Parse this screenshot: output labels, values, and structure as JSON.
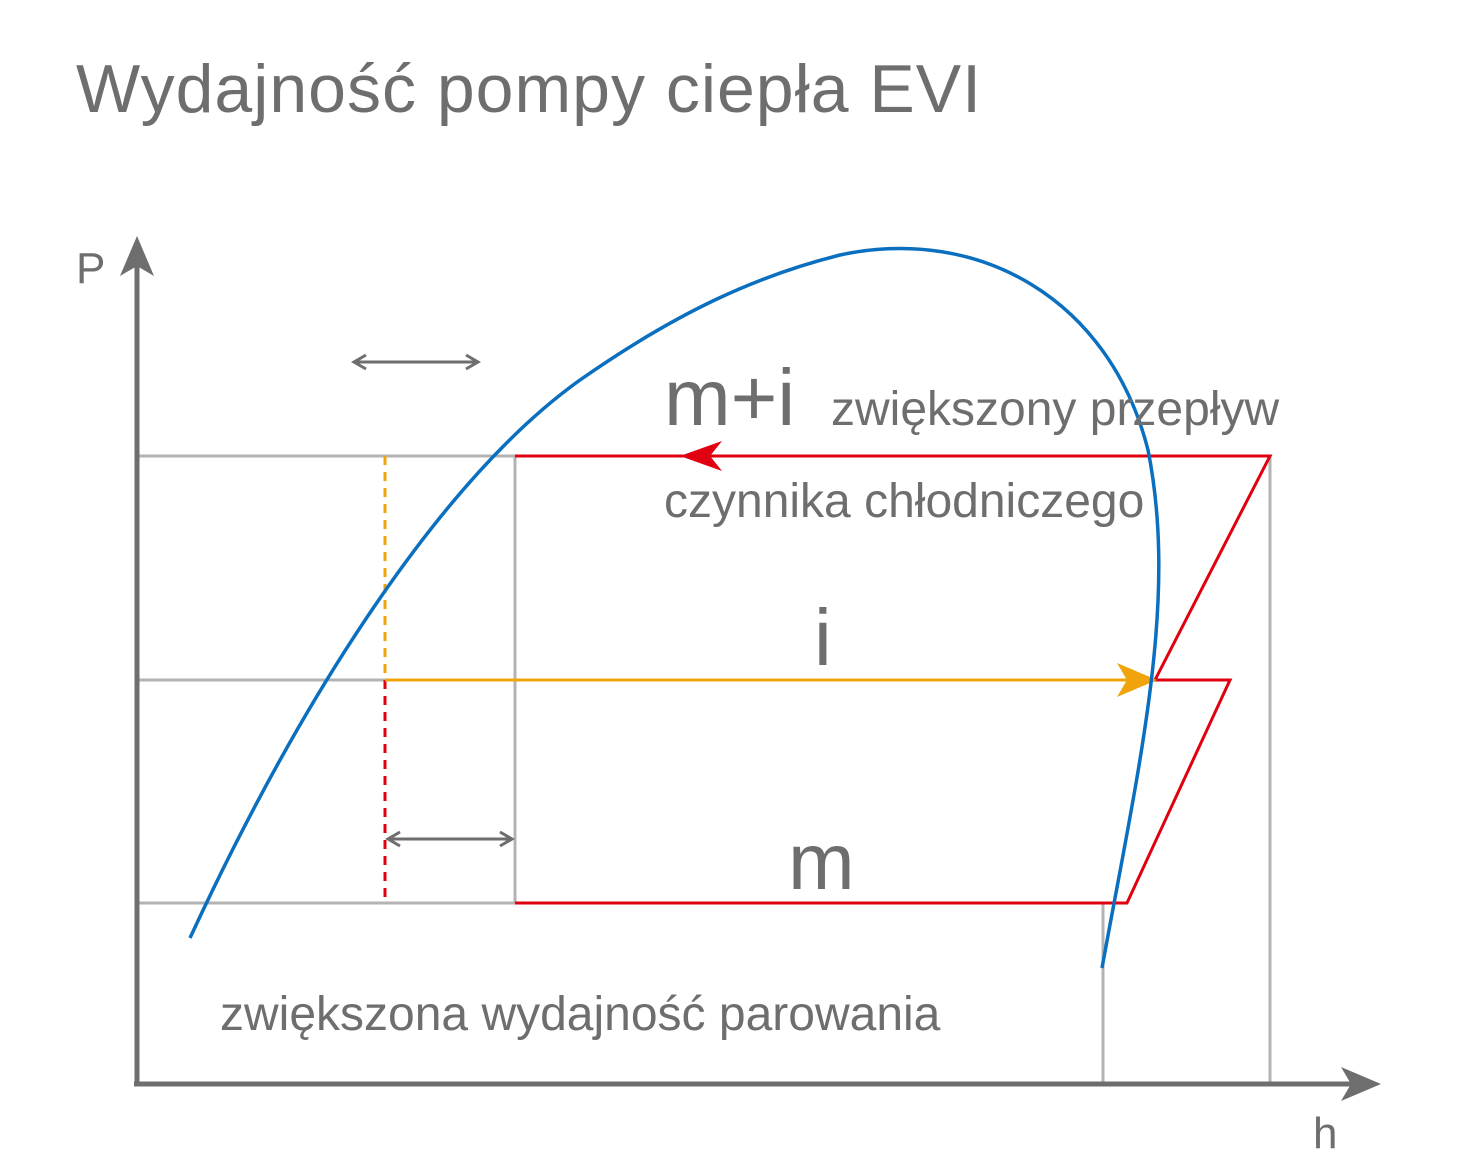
{
  "title": "Wydajność pompy ciepła EVI",
  "axes": {
    "y_label": "P",
    "x_label": "h"
  },
  "labels": {
    "m_plus_i": "m+i",
    "flow_line1": "zwiększony przepływ",
    "flow_line2": "czynnika chłodniczego",
    "i": "i",
    "m": "m",
    "evaporation": "zwiększona wydajność parowania"
  },
  "colors": {
    "axis": "#6e6e6e",
    "grid": "#b3b3b3",
    "cycle": "#e0000f",
    "injection": "#f0a30a",
    "saturation_curve": "#0a6fbf",
    "text": "#6e6e6e"
  }
}
